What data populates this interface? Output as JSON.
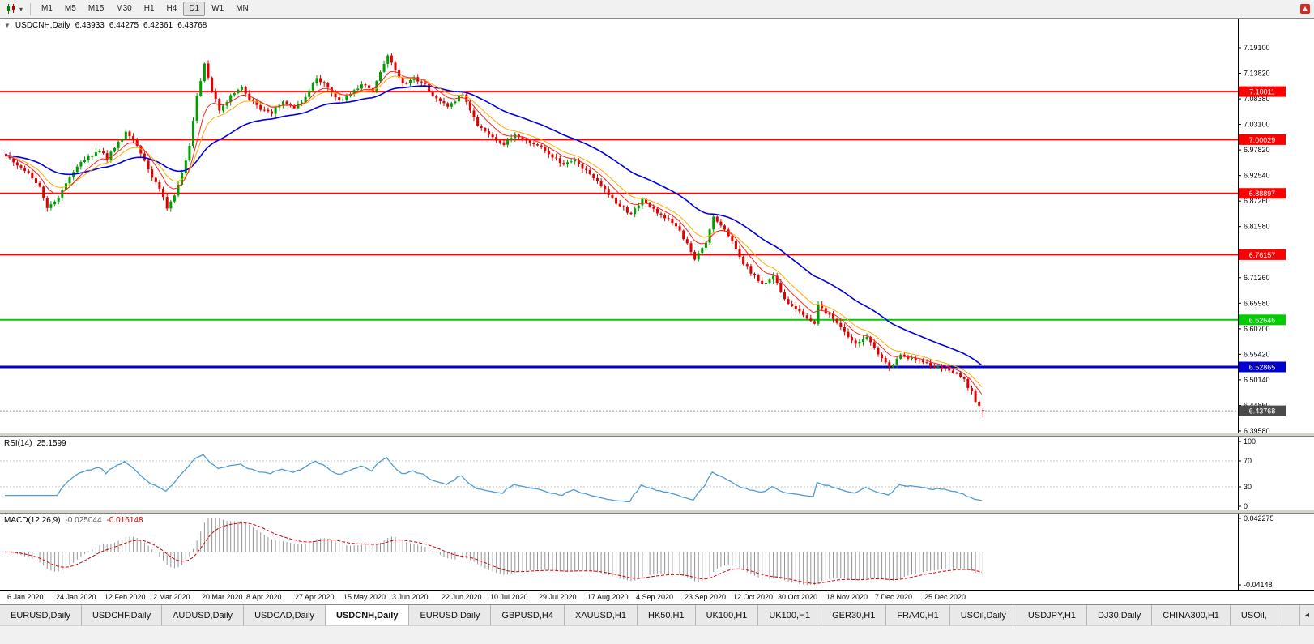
{
  "icons": {
    "collapse_arrow": "▼",
    "dropdown_caret": "▾",
    "scroll_left": "◂"
  },
  "toolbar": {
    "timeframes": [
      {
        "label": "M1",
        "active": false
      },
      {
        "label": "M5",
        "active": false
      },
      {
        "label": "M15",
        "active": false
      },
      {
        "label": "M30",
        "active": false
      },
      {
        "label": "H1",
        "active": false
      },
      {
        "label": "H4",
        "active": false
      },
      {
        "label": "D1",
        "active": true
      },
      {
        "label": "W1",
        "active": false
      },
      {
        "label": "MN",
        "active": false
      }
    ]
  },
  "chart": {
    "symbol_period": "USDCNH,Daily",
    "ohlc": {
      "open": "6.43933",
      "high": "6.44275",
      "low": "6.42361",
      "close": "6.43768"
    }
  },
  "indicators": {
    "rsi": {
      "label": "RSI(14)",
      "value": "25.1599"
    },
    "macd": {
      "label": "MACD(12,26,9)",
      "value": "-0.025044",
      "signal": "-0.016148"
    }
  },
  "tabbar": {
    "tabs": [
      {
        "label": "EURUSD,Daily",
        "active": false
      },
      {
        "label": "USDCHF,Daily",
        "active": false
      },
      {
        "label": "AUDUSD,Daily",
        "active": false
      },
      {
        "label": "USDCAD,Daily",
        "active": false
      },
      {
        "label": "USDCNH,Daily",
        "active": true
      },
      {
        "label": "EURUSD,Daily",
        "active": false
      },
      {
        "label": "GBPUSD,H4",
        "active": false
      },
      {
        "label": "XAUUSD,H1",
        "active": false
      },
      {
        "label": "HK50,H1",
        "active": false
      },
      {
        "label": "UK100,H1",
        "active": false
      },
      {
        "label": "UK100,H1",
        "active": false
      },
      {
        "label": "GER30,H1",
        "active": false
      },
      {
        "label": "FRA40,H1",
        "active": false
      },
      {
        "label": "USOil,Daily",
        "active": false
      },
      {
        "label": "USDJPY,H1",
        "active": false
      },
      {
        "label": "DJ30,Daily",
        "active": false
      },
      {
        "label": "CHINA300,H1",
        "active": false
      },
      {
        "label": "USOil,",
        "active": false
      }
    ]
  },
  "chart_data": {
    "type": "candlestick",
    "symbol": "USDCNH",
    "period": "Daily",
    "candle_count": 262,
    "y_range": [
      6.3958,
      7.191
    ],
    "y_ticks": [
      "7.19100",
      "7.13820",
      "7.08380",
      "7.03100",
      "6.97820",
      "6.92540",
      "6.87260",
      "6.81980",
      "6.76700",
      "6.71260",
      "6.65980",
      "6.60700",
      "6.55420",
      "6.50140",
      "6.44860",
      "6.39580"
    ],
    "x_ticks": [
      {
        "index": 1,
        "label": "6 Jan 2020"
      },
      {
        "index": 14,
        "label": "24 Jan 2020"
      },
      {
        "index": 27,
        "label": "12 Feb 2020"
      },
      {
        "index": 40,
        "label": "2 Mar 2020"
      },
      {
        "index": 53,
        "label": "20 Mar 2020"
      },
      {
        "index": 65,
        "label": "8 Apr 2020"
      },
      {
        "index": 78,
        "label": "27 Apr 2020"
      },
      {
        "index": 91,
        "label": "15 May 2020"
      },
      {
        "index": 104,
        "label": "3 Jun 2020"
      },
      {
        "index": 117,
        "label": "22 Jun 2020"
      },
      {
        "index": 130,
        "label": "10 Jul 2020"
      },
      {
        "index": 143,
        "label": "29 Jul 2020"
      },
      {
        "index": 156,
        "label": "17 Aug 2020"
      },
      {
        "index": 169,
        "label": "4 Sep 2020"
      },
      {
        "index": 182,
        "label": "23 Sep 2020"
      },
      {
        "index": 195,
        "label": "12 Oct 2020"
      },
      {
        "index": 207,
        "label": "30 Oct 2020"
      },
      {
        "index": 220,
        "label": "18 Nov 2020"
      },
      {
        "index": 233,
        "label": "7 Dec 2020"
      },
      {
        "index": 246,
        "label": "25 Dec 2020"
      }
    ],
    "price_path": [
      [
        0,
        6.968
      ],
      [
        3,
        6.948
      ],
      [
        6,
        6.93
      ],
      [
        9,
        6.9
      ],
      [
        11,
        6.862
      ],
      [
        13,
        6.872
      ],
      [
        16,
        6.91
      ],
      [
        19,
        6.945
      ],
      [
        22,
        6.966
      ],
      [
        25,
        6.978
      ],
      [
        27,
        6.962
      ],
      [
        30,
        6.995
      ],
      [
        32,
        7.015
      ],
      [
        34,
        6.995
      ],
      [
        36,
        6.975
      ],
      [
        38,
        6.935
      ],
      [
        41,
        6.9
      ],
      [
        43,
        6.862
      ],
      [
        45,
        6.885
      ],
      [
        47,
        6.93
      ],
      [
        49,
        6.99
      ],
      [
        51,
        7.09
      ],
      [
        53,
        7.155
      ],
      [
        55,
        7.1
      ],
      [
        57,
        7.065
      ],
      [
        60,
        7.09
      ],
      [
        63,
        7.11
      ],
      [
        65,
        7.085
      ],
      [
        68,
        7.065
      ],
      [
        71,
        7.055
      ],
      [
        74,
        7.08
      ],
      [
        77,
        7.065
      ],
      [
        80,
        7.09
      ],
      [
        83,
        7.13
      ],
      [
        86,
        7.105
      ],
      [
        89,
        7.08
      ],
      [
        92,
        7.095
      ],
      [
        95,
        7.115
      ],
      [
        98,
        7.1
      ],
      [
        100,
        7.145
      ],
      [
        102,
        7.175
      ],
      [
        104,
        7.145
      ],
      [
        106,
        7.115
      ],
      [
        109,
        7.13
      ],
      [
        112,
        7.115
      ],
      [
        115,
        7.085
      ],
      [
        118,
        7.07
      ],
      [
        122,
        7.095
      ],
      [
        126,
        7.03
      ],
      [
        130,
        7.005
      ],
      [
        133,
        6.99
      ],
      [
        136,
        7.01
      ],
      [
        140,
        6.995
      ],
      [
        143,
        6.985
      ],
      [
        146,
        6.965
      ],
      [
        149,
        6.95
      ],
      [
        152,
        6.955
      ],
      [
        155,
        6.935
      ],
      [
        158,
        6.915
      ],
      [
        161,
        6.885
      ],
      [
        164,
        6.862
      ],
      [
        167,
        6.845
      ],
      [
        170,
        6.875
      ],
      [
        173,
        6.855
      ],
      [
        176,
        6.84
      ],
      [
        179,
        6.82
      ],
      [
        182,
        6.785
      ],
      [
        184,
        6.752
      ],
      [
        187,
        6.79
      ],
      [
        189,
        6.838
      ],
      [
        191,
        6.825
      ],
      [
        194,
        6.79
      ],
      [
        196,
        6.755
      ],
      [
        199,
        6.725
      ],
      [
        202,
        6.7
      ],
      [
        205,
        6.718
      ],
      [
        208,
        6.668
      ],
      [
        211,
        6.652
      ],
      [
        214,
        6.628
      ],
      [
        216,
        6.618
      ],
      [
        217,
        6.662
      ],
      [
        219,
        6.642
      ],
      [
        221,
        6.632
      ],
      [
        224,
        6.602
      ],
      [
        227,
        6.576
      ],
      [
        230,
        6.59
      ],
      [
        233,
        6.556
      ],
      [
        236,
        6.53
      ],
      [
        239,
        6.554
      ],
      [
        242,
        6.545
      ],
      [
        245,
        6.537
      ],
      [
        248,
        6.53
      ],
      [
        251,
        6.524
      ],
      [
        254,
        6.514
      ],
      [
        256,
        6.5
      ],
      [
        258,
        6.476
      ],
      [
        259,
        6.452
      ],
      [
        260,
        6.447
      ],
      [
        261,
        6.4377
      ]
    ],
    "last_candle": {
      "open": 6.43933,
      "high": 6.44275,
      "low": 6.42361,
      "close": 6.43768
    },
    "current_price": {
      "value": 6.43768,
      "label": "6.43768"
    },
    "hlines": [
      {
        "value": 7.10011,
        "label": "7.10011",
        "color": "#ff0000",
        "width": 2
      },
      {
        "value": 7.00029,
        "label": "7.00029",
        "color": "#ff0000",
        "width": 2
      },
      {
        "value": 6.88897,
        "label": "6.88897",
        "color": "#ff0000",
        "width": 2
      },
      {
        "value": 6.76157,
        "label": "6.76157",
        "color": "#ff0000",
        "width": 2
      },
      {
        "value": 6.62646,
        "label": "6.62646",
        "color": "#00cc00",
        "width": 2
      },
      {
        "value": 6.52865,
        "label": "6.52865",
        "color": "#0000d0",
        "width": 3
      }
    ],
    "colors": {
      "bull": "#009f00",
      "bear": "#e00000",
      "background": "#ffffff"
    },
    "moving_averages": [
      {
        "period": 34,
        "color": "#0000e0",
        "width": 1.6
      },
      {
        "period": 13,
        "color": "#ffaa00",
        "width": 1
      },
      {
        "period": 8,
        "color": "#ff2020",
        "width": 1
      }
    ],
    "rsi": {
      "period": 14,
      "current": 25.1599,
      "color": "#4f9bd5",
      "levels": [
        70,
        30
      ],
      "scale_labels": [
        100,
        70,
        30,
        0
      ]
    },
    "macd": {
      "fast": 12,
      "slow": 26,
      "signal_period": 9,
      "current": -0.025044,
      "current_signal": -0.016148,
      "scale": [
        0.042275,
        -0.04148
      ],
      "scale_labels": [
        "0.042275",
        "-0.04148"
      ],
      "histogram_color": "#949494",
      "signal_color": "#d40000"
    }
  }
}
